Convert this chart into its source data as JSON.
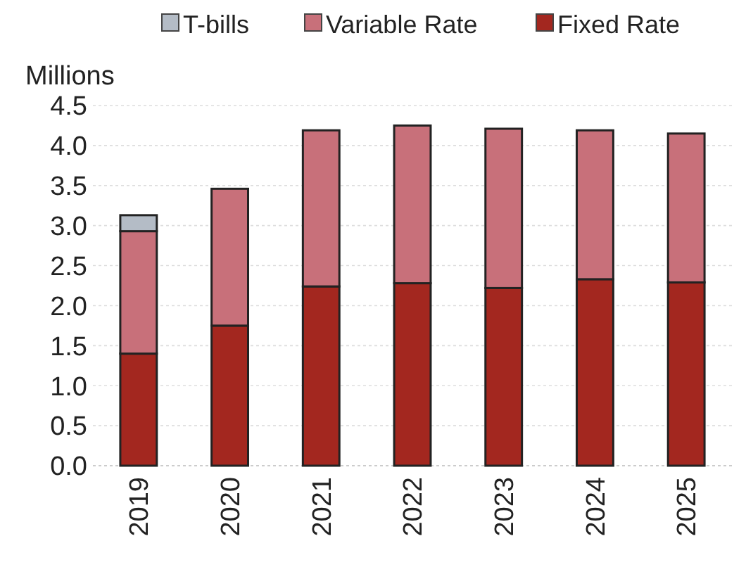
{
  "chart_data": {
    "type": "bar",
    "stacked": true,
    "ylabel": "Millions",
    "categories": [
      "2019",
      "2020",
      "2021",
      "2022",
      "2023",
      "2024",
      "2025"
    ],
    "series": [
      {
        "name": "Fixed Rate",
        "color": "#a3271f",
        "values": [
          1.4,
          1.75,
          2.24,
          2.28,
          2.22,
          2.33,
          2.29
        ]
      },
      {
        "name": "Variable Rate",
        "color": "#c8707a",
        "values": [
          1.53,
          1.71,
          1.95,
          1.97,
          1.99,
          1.86,
          1.86
        ]
      },
      {
        "name": "T-bills",
        "color": "#b4bcc6",
        "values": [
          0.2,
          null,
          null,
          null,
          null,
          null,
          null
        ]
      }
    ],
    "ylim": [
      0,
      4.5
    ],
    "yticks": [
      {
        "value": 0,
        "label": "0.0"
      },
      0.5,
      {
        "value": 1,
        "label": "1.0"
      },
      1.5,
      {
        "value": 2,
        "label": "2.0"
      },
      2.5,
      {
        "value": 3,
        "label": "3.0"
      },
      3.5,
      {
        "value": 4,
        "label": "4.0"
      },
      4.5
    ],
    "grid": "y",
    "legend": "top"
  }
}
